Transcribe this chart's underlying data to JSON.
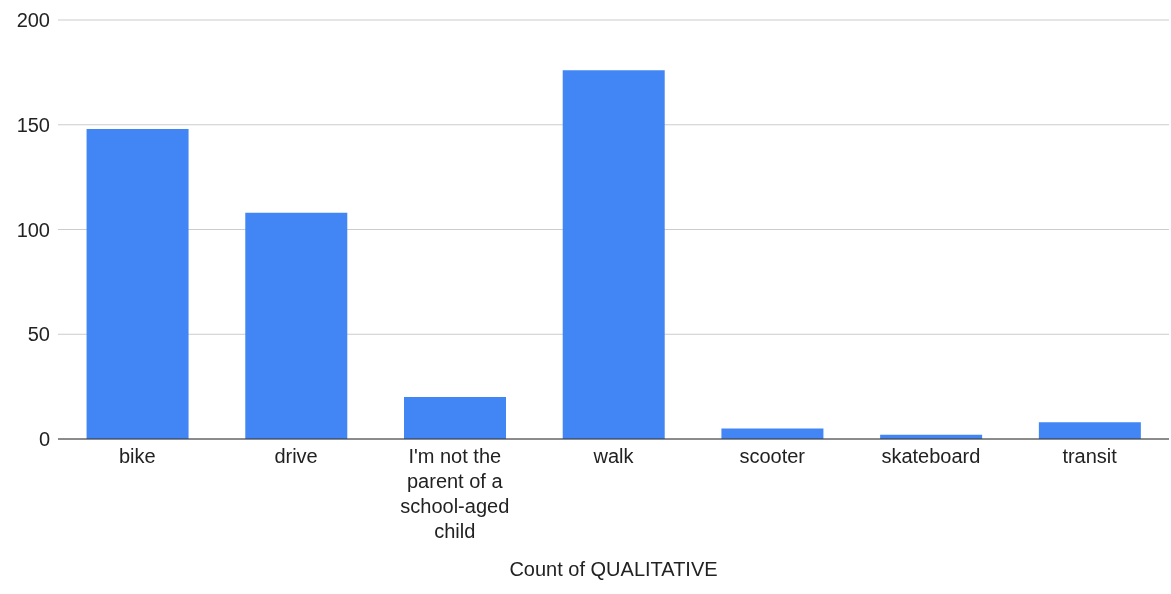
{
  "chart_data": {
    "type": "bar",
    "xlabel": "Count of QUALITATIVE",
    "categories": [
      "bike",
      "drive",
      "I'm not the parent of a school-aged child",
      "walk",
      "scooter",
      "skateboard",
      "transit"
    ],
    "values": [
      148,
      108,
      20,
      176,
      5,
      2,
      8
    ],
    "color": "#4285f4",
    "ylim": [
      0,
      200
    ],
    "yticks": [
      0,
      50,
      100,
      150,
      200
    ],
    "grid": "y"
  }
}
